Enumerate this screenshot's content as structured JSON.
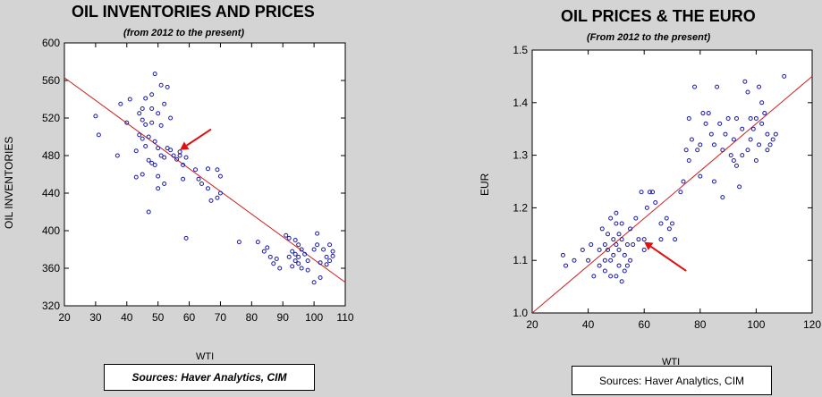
{
  "chart_data": [
    {
      "type": "scatter",
      "title": "OIL INVENTORIES AND PRICES",
      "subtitle": "(from 2012 to the present)",
      "xlabel": "WTI",
      "ylabel": "OIL INVENTORIES",
      "xlim": [
        20,
        110
      ],
      "ylim": [
        320,
        600
      ],
      "xticks": [
        20,
        30,
        40,
        50,
        60,
        70,
        80,
        90,
        100,
        110
      ],
      "yticks": [
        320,
        360,
        400,
        440,
        480,
        520,
        560,
        600
      ],
      "source": "Sources: Haver Analytics, CIM",
      "trendline": {
        "x": [
          20,
          110
        ],
        "y": [
          563,
          345
        ]
      },
      "arrow": {
        "from": [
          67,
          508
        ],
        "to": [
          57,
          486
        ]
      },
      "colors": {
        "points": "#1a1aa8",
        "trend": "#cc2222",
        "arrow": "#e01010"
      },
      "points": [
        [
          30,
          522
        ],
        [
          31,
          502
        ],
        [
          37,
          480
        ],
        [
          38,
          535
        ],
        [
          40,
          515
        ],
        [
          41,
          540
        ],
        [
          43,
          457
        ],
        [
          43,
          485
        ],
        [
          44,
          525
        ],
        [
          44,
          502
        ],
        [
          45,
          530
        ],
        [
          45,
          518
        ],
        [
          45,
          498
        ],
        [
          45,
          460
        ],
        [
          46,
          541
        ],
        [
          46,
          513
        ],
        [
          46,
          490
        ],
        [
          47,
          500
        ],
        [
          47,
          475
        ],
        [
          47,
          420
        ],
        [
          48,
          545
        ],
        [
          48,
          530
        ],
        [
          48,
          515
        ],
        [
          48,
          472
        ],
        [
          49,
          567
        ],
        [
          49,
          495
        ],
        [
          49,
          470
        ],
        [
          50,
          525
        ],
        [
          50,
          488
        ],
        [
          50,
          458
        ],
        [
          50,
          445
        ],
        [
          51,
          555
        ],
        [
          51,
          512
        ],
        [
          51,
          480
        ],
        [
          52,
          535
        ],
        [
          52,
          478
        ],
        [
          52,
          450
        ],
        [
          53,
          553
        ],
        [
          53,
          488
        ],
        [
          54,
          520
        ],
        [
          54,
          486
        ],
        [
          55,
          480
        ],
        [
          56,
          476
        ],
        [
          57,
          484
        ],
        [
          57,
          480
        ],
        [
          58,
          470
        ],
        [
          58,
          455
        ],
        [
          59,
          478
        ],
        [
          59,
          392
        ],
        [
          62,
          465
        ],
        [
          63,
          455
        ],
        [
          64,
          450
        ],
        [
          66,
          466
        ],
        [
          66,
          445
        ],
        [
          67,
          432
        ],
        [
          69,
          465
        ],
        [
          69,
          435
        ],
        [
          70,
          458
        ],
        [
          70,
          440
        ],
        [
          76,
          388
        ],
        [
          82,
          388
        ],
        [
          84,
          378
        ],
        [
          85,
          382
        ],
        [
          86,
          372
        ],
        [
          87,
          365
        ],
        [
          88,
          370
        ],
        [
          89,
          360
        ],
        [
          91,
          395
        ],
        [
          92,
          392
        ],
        [
          92,
          372
        ],
        [
          93,
          378
        ],
        [
          93,
          362
        ],
        [
          94,
          390
        ],
        [
          94,
          375
        ],
        [
          94,
          368
        ],
        [
          95,
          385
        ],
        [
          95,
          372
        ],
        [
          95,
          365
        ],
        [
          96,
          380
        ],
        [
          96,
          360
        ],
        [
          97,
          375
        ],
        [
          98,
          368
        ],
        [
          98,
          358
        ],
        [
          100,
          380
        ],
        [
          100,
          345
        ],
        [
          101,
          397
        ],
        [
          101,
          385
        ],
        [
          102,
          350
        ],
        [
          102,
          366
        ],
        [
          103,
          380
        ],
        [
          104,
          372
        ],
        [
          104,
          364
        ],
        [
          105,
          385
        ],
        [
          105,
          368
        ],
        [
          106,
          378
        ],
        [
          106,
          373
        ]
      ]
    },
    {
      "type": "scatter",
      "title": "OIL PRICES & THE EURO",
      "subtitle": "(From 2012 to the present)",
      "xlabel": "WTI",
      "ylabel": "EUR",
      "xlim": [
        20,
        120
      ],
      "ylim": [
        1.0,
        1.5
      ],
      "xticks": [
        20,
        40,
        60,
        80,
        100,
        120
      ],
      "yticks": [
        1.0,
        1.1,
        1.2,
        1.3,
        1.4,
        1.5
      ],
      "source": "Sources:  Haver Analytics, CIM",
      "trendline": {
        "x": [
          20,
          120
        ],
        "y": [
          1.0,
          1.45
        ]
      },
      "arrow": {
        "from": [
          75,
          1.08
        ],
        "to": [
          60,
          1.135
        ]
      },
      "colors": {
        "points": "#1a1aa8",
        "trend": "#cc2222",
        "arrow": "#e01010"
      },
      "points": [
        [
          31,
          1.11
        ],
        [
          32,
          1.09
        ],
        [
          35,
          1.1
        ],
        [
          38,
          1.12
        ],
        [
          40,
          1.1
        ],
        [
          41,
          1.13
        ],
        [
          42,
          1.07
        ],
        [
          44,
          1.12
        ],
        [
          44,
          1.09
        ],
        [
          45,
          1.16
        ],
        [
          46,
          1.13
        ],
        [
          46,
          1.1
        ],
        [
          46,
          1.08
        ],
        [
          47,
          1.15
        ],
        [
          47,
          1.12
        ],
        [
          48,
          1.18
        ],
        [
          48,
          1.1
        ],
        [
          48,
          1.07
        ],
        [
          49,
          1.14
        ],
        [
          49,
          1.11
        ],
        [
          50,
          1.19
        ],
        [
          50,
          1.17
        ],
        [
          50,
          1.13
        ],
        [
          50,
          1.07
        ],
        [
          51,
          1.15
        ],
        [
          51,
          1.12
        ],
        [
          51,
          1.09
        ],
        [
          52,
          1.17
        ],
        [
          52,
          1.14
        ],
        [
          52,
          1.06
        ],
        [
          53,
          1.11
        ],
        [
          53,
          1.08
        ],
        [
          54,
          1.13
        ],
        [
          54,
          1.09
        ],
        [
          55,
          1.16
        ],
        [
          55,
          1.1
        ],
        [
          56,
          1.13
        ],
        [
          57,
          1.18
        ],
        [
          58,
          1.14
        ],
        [
          59,
          1.23
        ],
        [
          60,
          1.12
        ],
        [
          60,
          1.14
        ],
        [
          61,
          1.2
        ],
        [
          62,
          1.23
        ],
        [
          63,
          1.23
        ],
        [
          64,
          1.21
        ],
        [
          66,
          1.17
        ],
        [
          66,
          1.14
        ],
        [
          68,
          1.18
        ],
        [
          69,
          1.16
        ],
        [
          70,
          1.17
        ],
        [
          71,
          1.14
        ],
        [
          73,
          1.23
        ],
        [
          74,
          1.25
        ],
        [
          75,
          1.31
        ],
        [
          76,
          1.29
        ],
        [
          76,
          1.37
        ],
        [
          77,
          1.33
        ],
        [
          78,
          1.43
        ],
        [
          79,
          1.31
        ],
        [
          80,
          1.32
        ],
        [
          80,
          1.26
        ],
        [
          81,
          1.38
        ],
        [
          82,
          1.36
        ],
        [
          83,
          1.38
        ],
        [
          84,
          1.34
        ],
        [
          85,
          1.25
        ],
        [
          85,
          1.32
        ],
        [
          86,
          1.43
        ],
        [
          87,
          1.36
        ],
        [
          88,
          1.31
        ],
        [
          88,
          1.22
        ],
        [
          89,
          1.34
        ],
        [
          90,
          1.37
        ],
        [
          91,
          1.3
        ],
        [
          92,
          1.29
        ],
        [
          92,
          1.33
        ],
        [
          93,
          1.28
        ],
        [
          93,
          1.37
        ],
        [
          94,
          1.24
        ],
        [
          95,
          1.35
        ],
        [
          95,
          1.3
        ],
        [
          96,
          1.44
        ],
        [
          97,
          1.42
        ],
        [
          97,
          1.31
        ],
        [
          98,
          1.37
        ],
        [
          98,
          1.33
        ],
        [
          99,
          1.35
        ],
        [
          100,
          1.29
        ],
        [
          100,
          1.37
        ],
        [
          101,
          1.43
        ],
        [
          101,
          1.32
        ],
        [
          102,
          1.4
        ],
        [
          102,
          1.36
        ],
        [
          103,
          1.38
        ],
        [
          104,
          1.34
        ],
        [
          104,
          1.31
        ],
        [
          105,
          1.32
        ],
        [
          106,
          1.33
        ],
        [
          107,
          1.34
        ],
        [
          110,
          1.45
        ]
      ]
    }
  ]
}
